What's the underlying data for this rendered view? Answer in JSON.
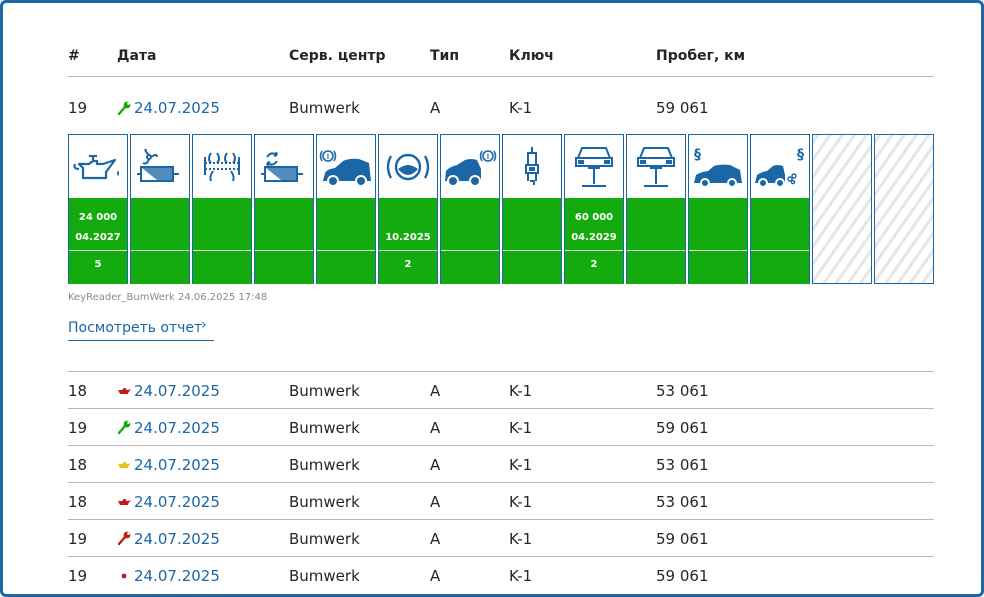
{
  "columns": {
    "num": "#",
    "date": "Дата",
    "service": "Серв. центр",
    "type": "Тип",
    "key": "Ключ",
    "mileage": "Пробег, км"
  },
  "expanded": {
    "num": "19",
    "date": "24.07.2025",
    "indicator": "wrench-icon",
    "indicator_color": "#14ab0f",
    "service": "Bumwerk",
    "type": "A",
    "key": "K-1",
    "mileage": "59 061",
    "cards": [
      {
        "icon": "oil-service-icon",
        "line1": "24 000",
        "line2": "04.2027",
        "line3": "5"
      },
      {
        "icon": "cabin-air-filter-icon",
        "line1": "",
        "line2": "",
        "line3": ""
      },
      {
        "icon": "air-filter-icon",
        "line1": "",
        "line2": "",
        "line3": ""
      },
      {
        "icon": "fuel-filter-icon",
        "line1": "",
        "line2": "",
        "line3": ""
      },
      {
        "icon": "front-brake-icon",
        "line1": "",
        "line2": "",
        "line3": ""
      },
      {
        "icon": "brake-fluid-icon",
        "line1": "",
        "line2": "10.2025",
        "line3": "2"
      },
      {
        "icon": "rear-brake-icon",
        "line1": "",
        "line2": "",
        "line3": ""
      },
      {
        "icon": "spark-plug-icon",
        "line1": "",
        "line2": "",
        "line3": ""
      },
      {
        "icon": "vehicle-check-icon",
        "line1": "60 000",
        "line2": "04.2029",
        "line3": "2"
      },
      {
        "icon": "vehicle-lift-icon",
        "line1": "",
        "line2": "",
        "line3": ""
      },
      {
        "icon": "legal-inspection-icon",
        "line1": "",
        "line2": "",
        "line3": ""
      },
      {
        "icon": "emissions-inspection-icon",
        "line1": "",
        "line2": "",
        "line3": ""
      },
      {
        "icon": "empty-slot",
        "line1": "",
        "line2": "",
        "line3": ""
      },
      {
        "icon": "empty-slot",
        "line1": "",
        "line2": "",
        "line3": ""
      }
    ],
    "source": "KeyReader_BumWerk 24.06.2025 17:48",
    "report_link": "Посмотреть отчет"
  },
  "rows": [
    {
      "num": "18",
      "date": "24.07.2025",
      "indicator": "oil-can-icon",
      "indicator_color": "#c41a1a",
      "service": "Bumwerk",
      "type": "A",
      "key": "K-1",
      "mileage": "53 061"
    },
    {
      "num": "19",
      "date": "24.07.2025",
      "indicator": "wrench-icon",
      "indicator_color": "#14ab0f",
      "service": "Bumwerk",
      "type": "A",
      "key": "K-1",
      "mileage": "59 061"
    },
    {
      "num": "18",
      "date": "24.07.2025",
      "indicator": "oil-can-icon",
      "indicator_color": "#e8c51c",
      "service": "Bumwerk",
      "type": "A",
      "key": "K-1",
      "mileage": "53 061"
    },
    {
      "num": "18",
      "date": "24.07.2025",
      "indicator": "oil-can-icon",
      "indicator_color": "#c41a1a",
      "service": "Bumwerk",
      "type": "A",
      "key": "K-1",
      "mileage": "53 061"
    },
    {
      "num": "19",
      "date": "24.07.2025",
      "indicator": "wrench-icon",
      "indicator_color": "#c41a1a",
      "service": "Bumwerk",
      "type": "A",
      "key": "K-1",
      "mileage": "59 061"
    },
    {
      "num": "19",
      "date": "24.07.2025",
      "indicator": "dot-icon",
      "indicator_color": "#c41a1a",
      "service": "Bumwerk",
      "type": "A",
      "key": "K-1",
      "mileage": "59 061"
    }
  ]
}
